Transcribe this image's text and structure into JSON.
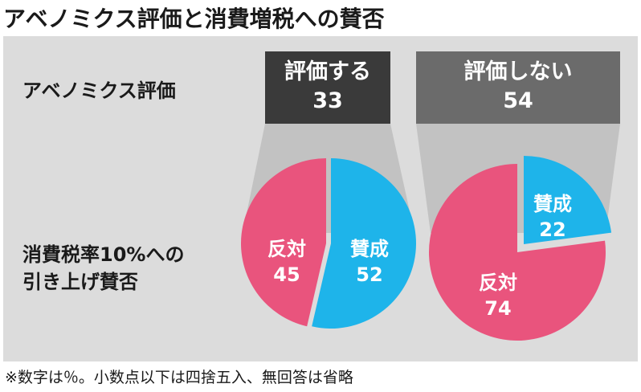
{
  "title": "アベノミクス評価と消費増税への賛否",
  "row_labels": {
    "abenomics": "アベノミクス評価",
    "tax_line1": "消費税率10%への",
    "tax_line2": "引き上げ賛否"
  },
  "groups": {
    "approve": {
      "label": "評価する",
      "value": "33"
    },
    "disapprove": {
      "label": "評価しない",
      "value": "54"
    }
  },
  "footnote": "※数字は％。小数点以下は四捨五入、無回答は省略",
  "colors": {
    "favor": "#1eb4ea",
    "oppose": "#e9547d",
    "box_dark": "#3a3a3a",
    "box_gray": "#6b6b6b",
    "panel": "#dcdcdc",
    "connector": "#c2c2c2"
  },
  "chart_data": [
    {
      "type": "pie",
      "group": "評価する",
      "slices": [
        {
          "name": "賛成",
          "value": 52
        },
        {
          "name": "反対",
          "value": 45
        }
      ]
    },
    {
      "type": "pie",
      "group": "評価しない",
      "slices": [
        {
          "name": "賛成",
          "value": 22
        },
        {
          "name": "反対",
          "value": 74
        }
      ]
    }
  ]
}
